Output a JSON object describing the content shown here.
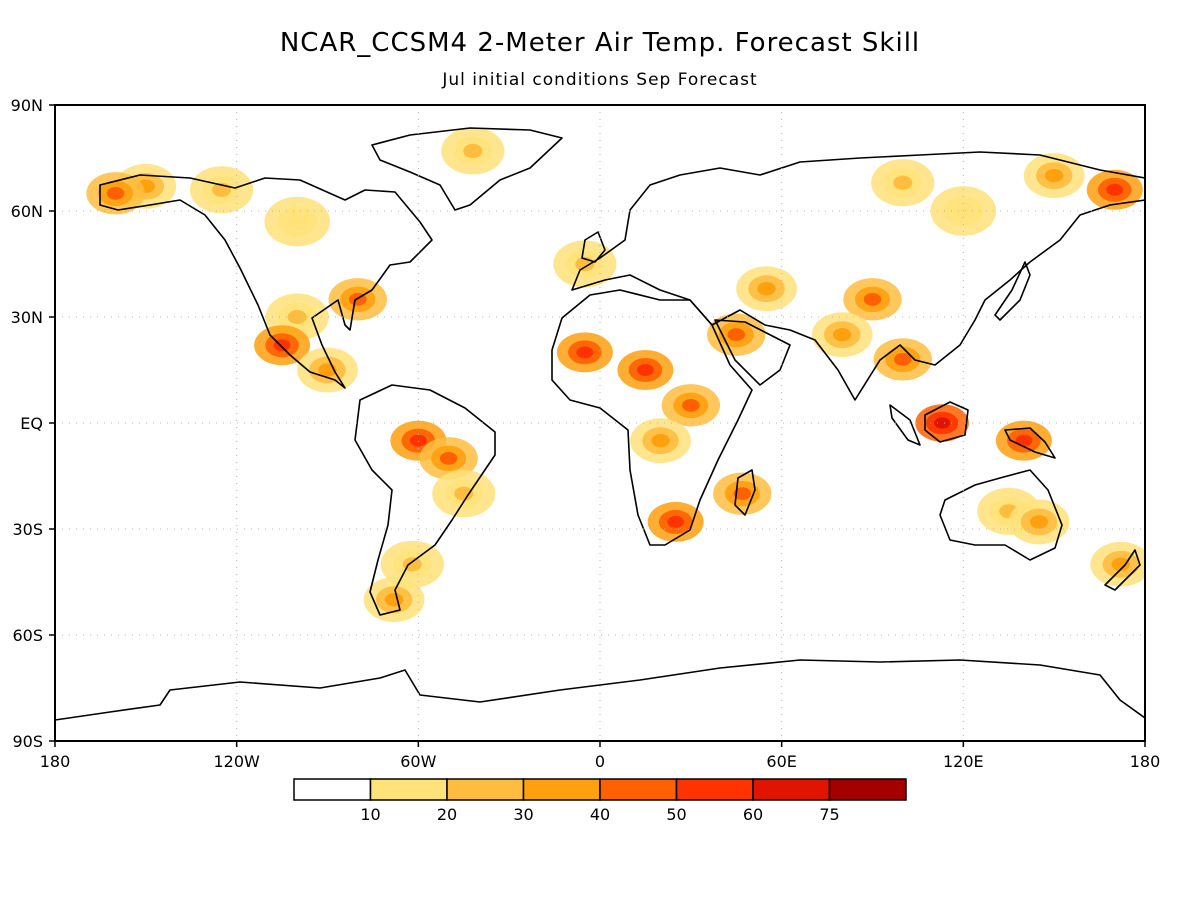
{
  "title": "NCAR_CCSM4 2-Meter Air Temp. Forecast Skill",
  "subtitle": "Jul initial conditions   Sep Forecast",
  "map": {
    "projection": "equirectangular",
    "lon_range": [
      -180,
      180
    ],
    "lat_range": [
      -90,
      90
    ],
    "gridlines": "dotted",
    "lat_ticks": [
      {
        "value": 90,
        "label": "90N"
      },
      {
        "value": 60,
        "label": "60N"
      },
      {
        "value": 30,
        "label": "30N"
      },
      {
        "value": 0,
        "label": "EQ"
      },
      {
        "value": -30,
        "label": "30S"
      },
      {
        "value": -60,
        "label": "60S"
      },
      {
        "value": -90,
        "label": "90S"
      }
    ],
    "lon_ticks": [
      {
        "value": -180,
        "label": "180"
      },
      {
        "value": -120,
        "label": "120W"
      },
      {
        "value": -60,
        "label": "60W"
      },
      {
        "value": 0,
        "label": "0"
      },
      {
        "value": 60,
        "label": "60E"
      },
      {
        "value": 120,
        "label": "120E"
      },
      {
        "value": 180,
        "label": "180"
      }
    ],
    "skill_regions": [
      {
        "lon": -150,
        "lat": 67,
        "level": 3
      },
      {
        "lon": -160,
        "lat": 65,
        "level": 4
      },
      {
        "lon": -125,
        "lat": 66,
        "level": 2
      },
      {
        "lon": -100,
        "lat": 57,
        "level": 1
      },
      {
        "lon": -80,
        "lat": 35,
        "level": 4
      },
      {
        "lon": -100,
        "lat": 30,
        "level": 2
      },
      {
        "lon": -105,
        "lat": 22,
        "level": 5
      },
      {
        "lon": -90,
        "lat": 15,
        "level": 3
      },
      {
        "lon": -42,
        "lat": 77,
        "level": 2
      },
      {
        "lon": -60,
        "lat": -5,
        "level": 5
      },
      {
        "lon": -50,
        "lat": -10,
        "level": 4
      },
      {
        "lon": -45,
        "lat": -20,
        "level": 2
      },
      {
        "lon": -62,
        "lat": -40,
        "level": 2
      },
      {
        "lon": -68,
        "lat": -50,
        "level": 3
      },
      {
        "lon": -5,
        "lat": 45,
        "level": 2
      },
      {
        "lon": -5,
        "lat": 20,
        "level": 5
      },
      {
        "lon": 15,
        "lat": 15,
        "level": 5
      },
      {
        "lon": 30,
        "lat": 5,
        "level": 4
      },
      {
        "lon": 20,
        "lat": -5,
        "level": 3
      },
      {
        "lon": 25,
        "lat": -28,
        "level": 5
      },
      {
        "lon": 47,
        "lat": -20,
        "level": 4
      },
      {
        "lon": 45,
        "lat": 25,
        "level": 4
      },
      {
        "lon": 55,
        "lat": 38,
        "level": 3
      },
      {
        "lon": 90,
        "lat": 35,
        "level": 4
      },
      {
        "lon": 80,
        "lat": 25,
        "level": 3
      },
      {
        "lon": 100,
        "lat": 18,
        "level": 4
      },
      {
        "lon": 113,
        "lat": 0,
        "level": 6
      },
      {
        "lon": 140,
        "lat": -5,
        "level": 5
      },
      {
        "lon": 135,
        "lat": -25,
        "level": 2
      },
      {
        "lon": 145,
        "lat": -28,
        "level": 3
      },
      {
        "lon": 150,
        "lat": 70,
        "level": 3
      },
      {
        "lon": 170,
        "lat": 66,
        "level": 5
      },
      {
        "lon": 100,
        "lat": 68,
        "level": 2
      },
      {
        "lon": 120,
        "lat": 60,
        "level": 1
      },
      {
        "lon": 172,
        "lat": -40,
        "level": 3
      }
    ]
  },
  "legend": {
    "colors": [
      "#ffffff",
      "#ffe27a",
      "#ffbd3f",
      "#ffa00f",
      "#ff6000",
      "#ff3300",
      "#e01400",
      "#a50000"
    ],
    "labels": [
      "10",
      "20",
      "30",
      "40",
      "50",
      "60",
      "75"
    ]
  }
}
